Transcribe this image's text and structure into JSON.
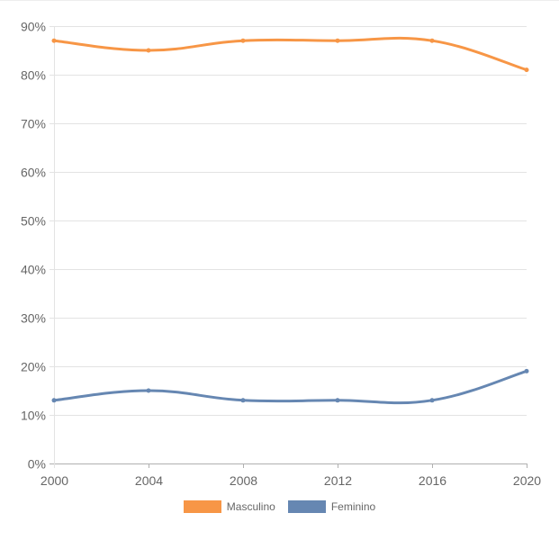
{
  "chart_data": {
    "type": "line",
    "title": "",
    "xlabel": "",
    "ylabel": "",
    "x": [
      2000,
      2004,
      2008,
      2012,
      2016,
      2020
    ],
    "x_tick_labels": [
      "2000",
      "2004",
      "2008",
      "2012",
      "2016",
      "2020"
    ],
    "ylim": [
      0,
      90
    ],
    "y_ticks": [
      0,
      10,
      20,
      30,
      40,
      50,
      60,
      70,
      80,
      90
    ],
    "y_tick_labels": [
      "0%",
      "10%",
      "20%",
      "30%",
      "40%",
      "50%",
      "60%",
      "70%",
      "80%",
      "90%"
    ],
    "grid": true,
    "legend_position": "bottom",
    "series": [
      {
        "name": "Masculino",
        "color": "#f79646",
        "values": [
          87,
          85,
          87,
          87,
          87,
          81
        ]
      },
      {
        "name": "Feminino",
        "color": "#6687b2",
        "values": [
          13,
          15,
          13,
          13,
          13,
          19
        ]
      }
    ]
  }
}
